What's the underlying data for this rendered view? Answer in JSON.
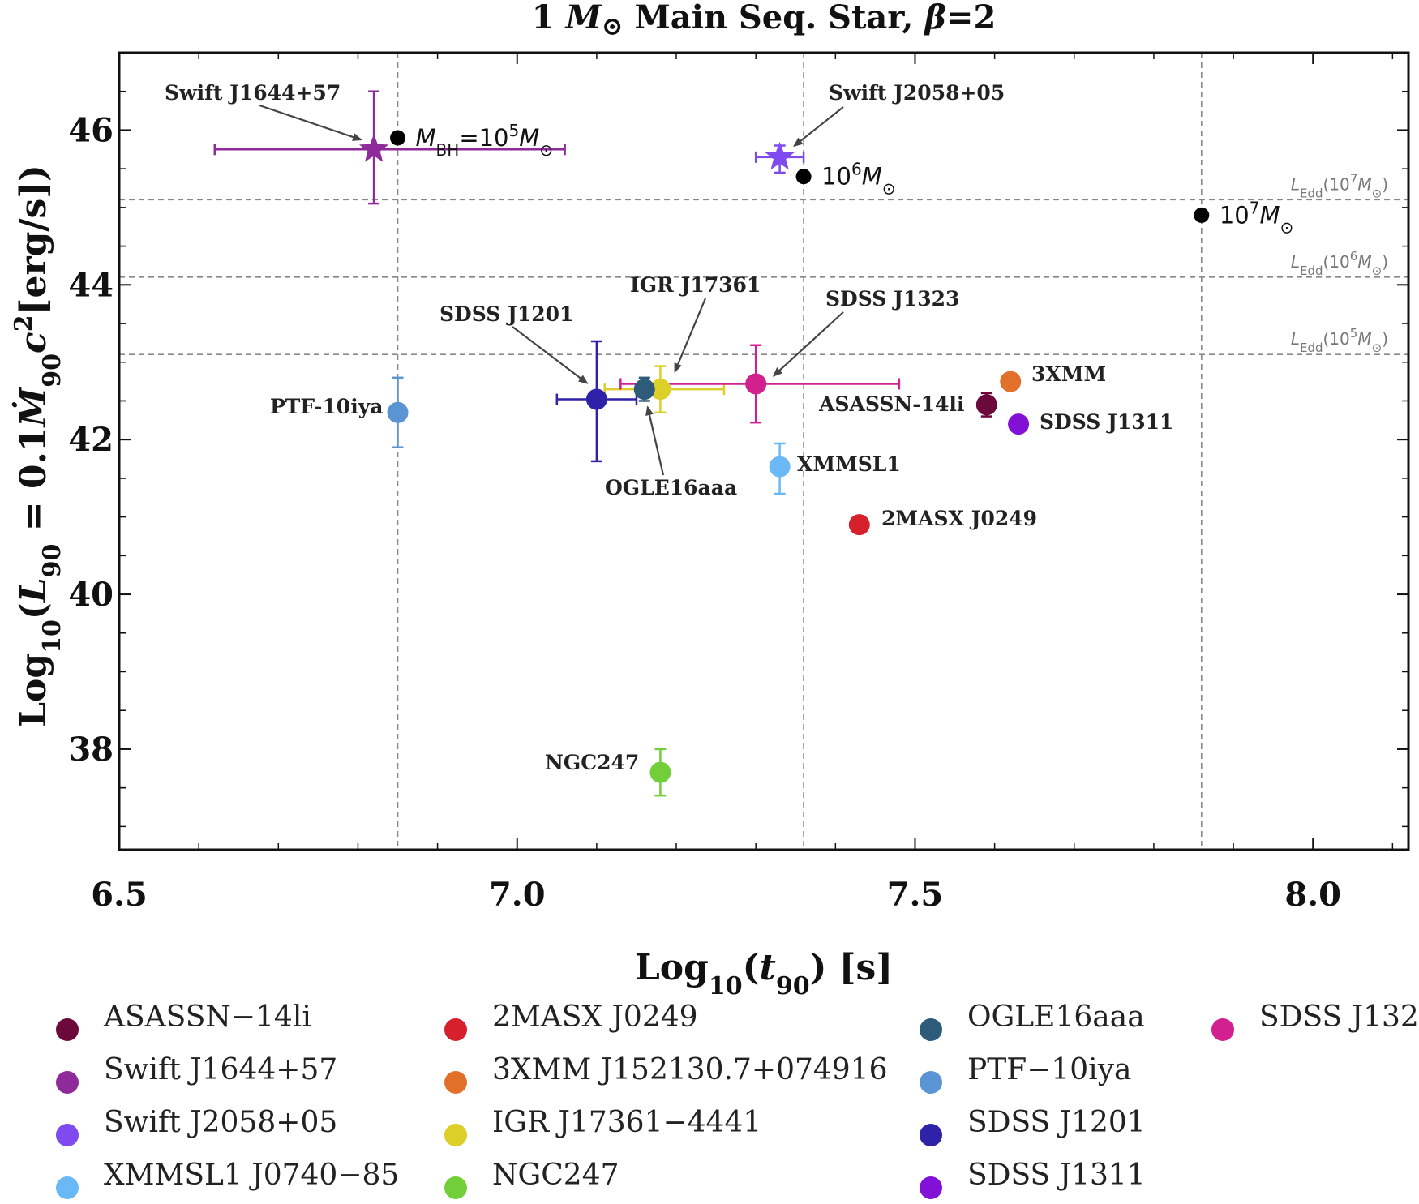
{
  "chart_data": {
    "type": "scatter",
    "title": "1 M⊙ Main Seq. Star, β=2",
    "xlabel": "Log10(t90) [s]",
    "ylabel": "Log10(L90 = 0.1Ṁ90c²[erg/s])",
    "xlim": [
      6.5,
      8.12
    ],
    "ylim": [
      36.7,
      47.0
    ],
    "x_ticks": [
      "6.5",
      "7.0",
      "7.5",
      "8.0"
    ],
    "y_ticks": [
      "38",
      "40",
      "42",
      "44",
      "46"
    ],
    "grid": false,
    "legend_position": "bottom",
    "events": [
      {
        "name": "ASASSN−14li",
        "label": "ASASSN-14li",
        "color": "#6b0a3a",
        "x": 7.59,
        "y": 42.45,
        "yerr": [
          0.15,
          0.15
        ],
        "marker": "circle"
      },
      {
        "name": "Swift J1644+57",
        "label": "Swift J1644+57",
        "color": "#8e2a99",
        "x": 6.82,
        "y": 45.75,
        "xerr": [
          0.2,
          0.24
        ],
        "yerr": [
          0.7,
          0.75
        ],
        "marker": "star"
      },
      {
        "name": "Swift J2058+05",
        "label": "Swift J2058+05",
        "color": "#7f4bf0",
        "x": 7.33,
        "y": 45.65,
        "xerr": [
          0.03,
          0.03
        ],
        "yerr": [
          0.2,
          0.15
        ],
        "marker": "star"
      },
      {
        "name": "XMMSL1 J0740−85",
        "label": "XMMSL1",
        "color": "#6ab8f6",
        "x": 7.33,
        "y": 41.65,
        "xerr": [
          0.01,
          0.01
        ],
        "yerr": [
          0.35,
          0.3
        ],
        "marker": "circle"
      },
      {
        "name": "2MASX J0249",
        "label": "2MASX J0249",
        "color": "#d6202c",
        "x": 7.43,
        "y": 40.9,
        "marker": "circle"
      },
      {
        "name": "3XMM J152130.7+074916",
        "label": "3XMM",
        "color": "#e0702a",
        "x": 7.62,
        "y": 42.75,
        "marker": "circle"
      },
      {
        "name": "IGR J17361−4441",
        "label": "IGR J17361",
        "color": "#dccf2a",
        "x": 7.18,
        "y": 42.65,
        "xerr": [
          0.07,
          0.08
        ],
        "yerr": [
          0.3,
          0.3
        ],
        "marker": "circle"
      },
      {
        "name": "NGC247",
        "label": "NGC247",
        "color": "#72cf3a",
        "x": 7.18,
        "y": 37.7,
        "yerr": [
          0.3,
          0.3
        ],
        "marker": "circle"
      },
      {
        "name": "OGLE16aaa",
        "label": "OGLE16aaa",
        "color": "#2f5b7b",
        "x": 7.16,
        "y": 42.65,
        "yerr": [
          0.15,
          0.15
        ],
        "marker": "circle"
      },
      {
        "name": "PTF−10iya",
        "label": "PTF-10iya",
        "color": "#5b94d4",
        "x": 6.85,
        "y": 42.35,
        "yerr": [
          0.45,
          0.45
        ],
        "marker": "circle"
      },
      {
        "name": "SDSS J1201",
        "label": "SDSS J1201",
        "color": "#2d22a8",
        "x": 7.1,
        "y": 42.52,
        "xerr": [
          0.05,
          0.05
        ],
        "yerr": [
          0.8,
          0.75
        ],
        "marker": "circle"
      },
      {
        "name": "SDSS J1311",
        "label": "SDSS J1311",
        "color": "#8310d6",
        "x": 7.63,
        "y": 42.2,
        "marker": "circle"
      },
      {
        "name": "SDSS J1323",
        "label": "SDSS J1323",
        "color": "#d3208f",
        "x": 7.3,
        "y": 42.72,
        "xerr": [
          0.17,
          0.18
        ],
        "yerr": [
          0.5,
          0.5
        ],
        "marker": "circle"
      }
    ],
    "bh_masses": [
      {
        "label": "MBH=10^5M⊙",
        "x": 6.85,
        "y": 45.9
      },
      {
        "label": "10^6M⊙",
        "x": 7.36,
        "y": 45.4
      },
      {
        "label": "10^7M⊙",
        "x": 7.86,
        "y": 44.9
      }
    ],
    "eddington_lines": [
      {
        "label": "LEdd(10^7M⊙)",
        "y": 45.1
      },
      {
        "label": "LEdd(10^6M⊙)",
        "y": 44.1
      },
      {
        "label": "LEdd(10^5M⊙)",
        "y": 43.1
      }
    ],
    "vertical_reference_x": [
      6.85,
      7.36,
      7.86
    ]
  },
  "colors": {
    "axis": "#111111",
    "reference_line": "#888888",
    "arrow": "#444444",
    "bh_marker": "#000000"
  }
}
